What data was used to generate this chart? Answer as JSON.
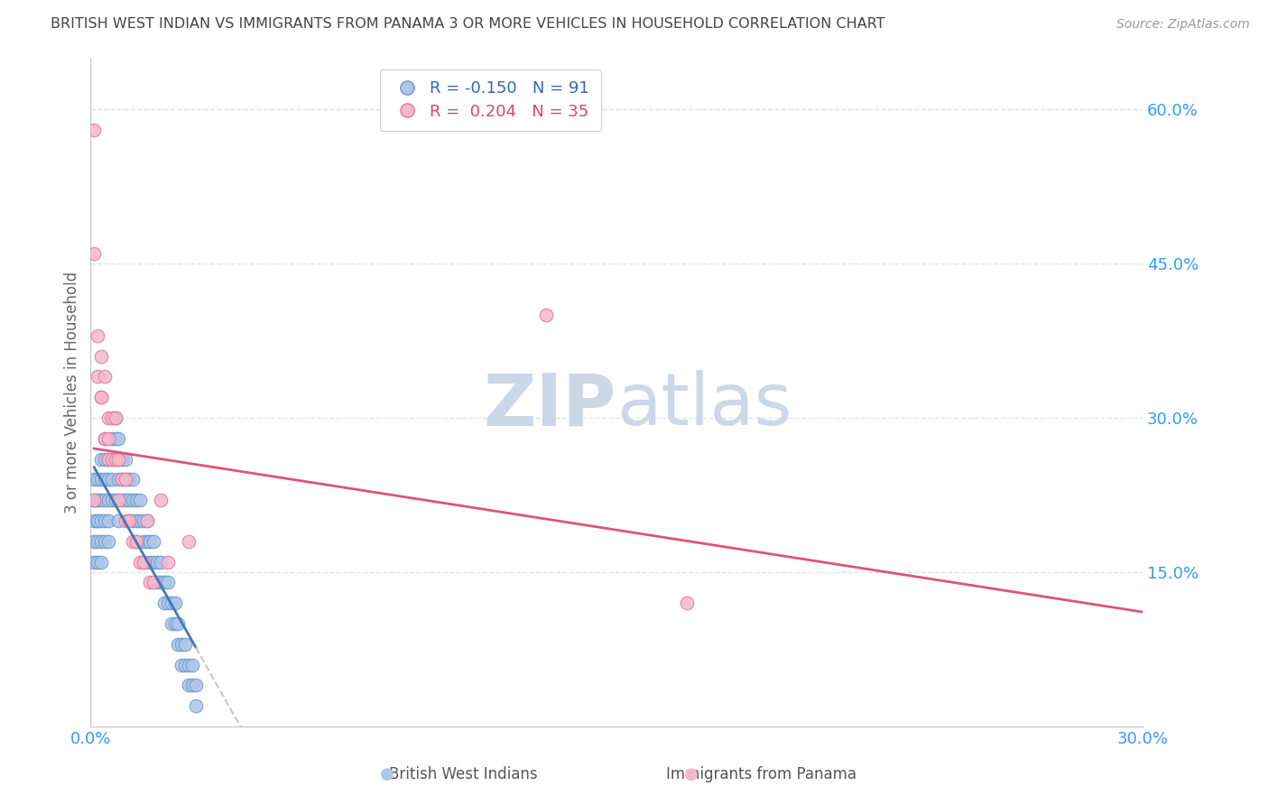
{
  "title": "BRITISH WEST INDIAN VS IMMIGRANTS FROM PANAMA 3 OR MORE VEHICLES IN HOUSEHOLD CORRELATION CHART",
  "source": "Source: ZipAtlas.com",
  "ylabel": "3 or more Vehicles in Household",
  "xlim": [
    0.0,
    0.3
  ],
  "ylim": [
    0.0,
    0.65
  ],
  "yticks": [
    0.15,
    0.3,
    0.45,
    0.6
  ],
  "ytick_labels": [
    "15.0%",
    "30.0%",
    "45.0%",
    "60.0%"
  ],
  "xticks": [
    0.0,
    0.05,
    0.1,
    0.15,
    0.2,
    0.25,
    0.3
  ],
  "xtick_labels": [
    "0.0%",
    "",
    "",
    "",
    "",
    "",
    "30.0%"
  ],
  "series1_label": "British West Indians",
  "series1_R": -0.15,
  "series1_N": 91,
  "series1_color": "#aec6e8",
  "series1_edge": "#6699cc",
  "series2_label": "Immigrants from Panama",
  "series2_R": 0.204,
  "series2_N": 35,
  "series2_color": "#f4b8cc",
  "series2_edge": "#e07898",
  "trendline1_color": "#4477bb",
  "trendline2_color": "#dd5577",
  "dashed_line_color": "#c0c8d8",
  "watermark_color": "#ccd8e8",
  "axis_label_color": "#3399ff",
  "title_color": "#444444",
  "grid_color": "#dde4ee",
  "series1_x": [
    0.001,
    0.001,
    0.001,
    0.001,
    0.001,
    0.002,
    0.002,
    0.002,
    0.002,
    0.002,
    0.002,
    0.002,
    0.003,
    0.003,
    0.003,
    0.003,
    0.003,
    0.003,
    0.004,
    0.004,
    0.004,
    0.004,
    0.004,
    0.004,
    0.005,
    0.005,
    0.005,
    0.005,
    0.005,
    0.006,
    0.006,
    0.006,
    0.006,
    0.007,
    0.007,
    0.007,
    0.007,
    0.008,
    0.008,
    0.008,
    0.008,
    0.009,
    0.009,
    0.009,
    0.01,
    0.01,
    0.01,
    0.011,
    0.011,
    0.011,
    0.012,
    0.012,
    0.012,
    0.013,
    0.013,
    0.013,
    0.014,
    0.014,
    0.015,
    0.015,
    0.015,
    0.016,
    0.016,
    0.017,
    0.017,
    0.018,
    0.018,
    0.019,
    0.019,
    0.02,
    0.02,
    0.021,
    0.021,
    0.022,
    0.022,
    0.023,
    0.023,
    0.024,
    0.024,
    0.025,
    0.025,
    0.026,
    0.026,
    0.027,
    0.027,
    0.028,
    0.028,
    0.029,
    0.029,
    0.03,
    0.03
  ],
  "series1_y": [
    0.22,
    0.2,
    0.18,
    0.16,
    0.24,
    0.22,
    0.2,
    0.18,
    0.22,
    0.24,
    0.2,
    0.16,
    0.24,
    0.26,
    0.22,
    0.2,
    0.18,
    0.16,
    0.28,
    0.26,
    0.24,
    0.22,
    0.2,
    0.18,
    0.26,
    0.24,
    0.22,
    0.2,
    0.18,
    0.28,
    0.26,
    0.24,
    0.22,
    0.3,
    0.28,
    0.26,
    0.22,
    0.28,
    0.26,
    0.24,
    0.2,
    0.26,
    0.24,
    0.22,
    0.26,
    0.24,
    0.22,
    0.24,
    0.22,
    0.2,
    0.24,
    0.22,
    0.2,
    0.22,
    0.2,
    0.18,
    0.22,
    0.2,
    0.2,
    0.18,
    0.16,
    0.2,
    0.18,
    0.18,
    0.16,
    0.18,
    0.16,
    0.16,
    0.14,
    0.16,
    0.14,
    0.14,
    0.12,
    0.14,
    0.12,
    0.12,
    0.1,
    0.12,
    0.1,
    0.1,
    0.08,
    0.08,
    0.06,
    0.08,
    0.06,
    0.06,
    0.04,
    0.06,
    0.04,
    0.04,
    0.02
  ],
  "series2_x": [
    0.001,
    0.001,
    0.002,
    0.002,
    0.003,
    0.003,
    0.004,
    0.004,
    0.005,
    0.005,
    0.006,
    0.006,
    0.007,
    0.007,
    0.008,
    0.008,
    0.009,
    0.01,
    0.01,
    0.011,
    0.012,
    0.013,
    0.014,
    0.015,
    0.016,
    0.017,
    0.018,
    0.02,
    0.022,
    0.028,
    0.17,
    0.13,
    0.001,
    0.003,
    0.005
  ],
  "series2_y": [
    0.58,
    0.46,
    0.38,
    0.34,
    0.36,
    0.32,
    0.34,
    0.28,
    0.3,
    0.26,
    0.3,
    0.26,
    0.3,
    0.26,
    0.26,
    0.22,
    0.24,
    0.24,
    0.2,
    0.2,
    0.18,
    0.18,
    0.16,
    0.16,
    0.2,
    0.14,
    0.14,
    0.22,
    0.16,
    0.18,
    0.12,
    0.4,
    0.22,
    0.32,
    0.28
  ],
  "trendline1_x_start": 0.001,
  "trendline1_x_end": 0.03,
  "trendline1_dashed_x_end": 0.3,
  "trendline2_x_start": 0.001,
  "trendline2_x_end": 0.3
}
